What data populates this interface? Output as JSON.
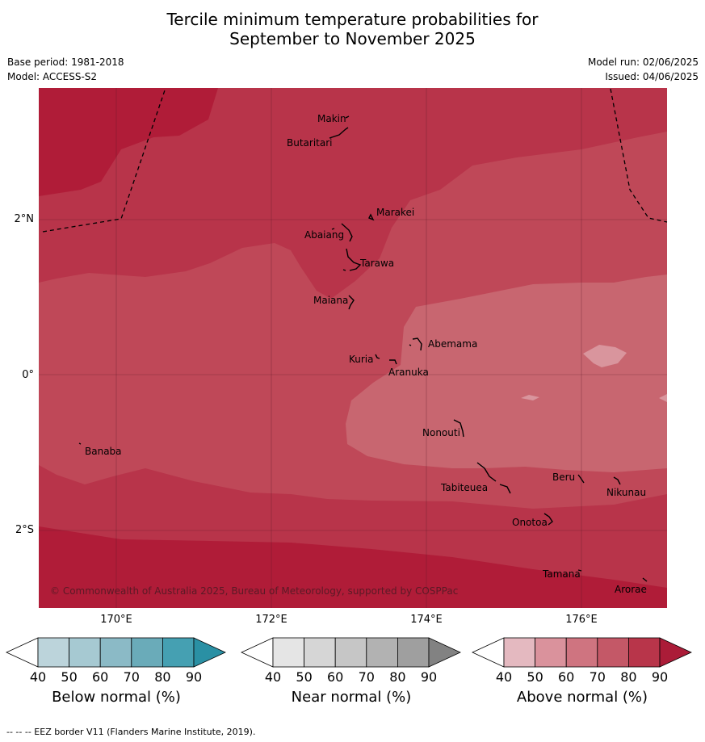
{
  "title_line1": "Tercile minimum temperature probabilities for",
  "title_line2": "September to November 2025",
  "base_period": "Base period: 1981-2018",
  "model": "Model: ACCESS-S2",
  "model_run": "Model run: 02/06/2025",
  "issued": "Issued: 04/06/2025",
  "copyright": "© Commonwealth of Australia 2025, Bureau of Meteorology, supported by COSPPac",
  "footer": "--  --  -- EEZ border V11 (Flanders Marine Institute, 2019).",
  "lon_labels": [
    "170°E",
    "172°E",
    "174°E",
    "176°E"
  ],
  "lat_labels": [
    "2°N",
    "0°",
    "2°S"
  ],
  "islands": [
    "Makin",
    "Butaritari",
    "Marakei",
    "Abaiang",
    "Tarawa",
    "Maiana",
    "Abemama",
    "Kuria",
    "Aranuka",
    "Banaba",
    "Nonouti",
    "Tabiteuea",
    "Beru",
    "Nikunau",
    "Onotoa",
    "Tamana",
    "Arorae"
  ],
  "colorbars": [
    {
      "title": "Below normal (%)",
      "ticks": [
        "40",
        "50",
        "60",
        "70",
        "80",
        "90"
      ],
      "colors": [
        "#ffffff",
        "#bcd4db",
        "#a6c9d2",
        "#8bbac6",
        "#6aabb9",
        "#45a0b2",
        "#2a90a4"
      ]
    },
    {
      "title": "Near normal (%)",
      "ticks": [
        "40",
        "50",
        "60",
        "70",
        "80",
        "90"
      ],
      "colors": [
        "#ffffff",
        "#e5e5e5",
        "#d6d6d6",
        "#c6c6c6",
        "#b2b2b2",
        "#9f9f9f",
        "#828282"
      ]
    },
    {
      "title": "Above normal (%)",
      "ticks": [
        "40",
        "50",
        "60",
        "70",
        "80",
        "90"
      ],
      "colors": [
        "#ffffff",
        "#e4b9c0",
        "#da929c",
        "#cf7480",
        "#c45867",
        "#b8354a",
        "#ab1c38"
      ]
    }
  ],
  "palette": {
    "cat90": "#b01c38",
    "cat80": "#b8344a",
    "cat70": "#bf4858",
    "cat60": "#c86670",
    "cat50": "#d9959d"
  }
}
